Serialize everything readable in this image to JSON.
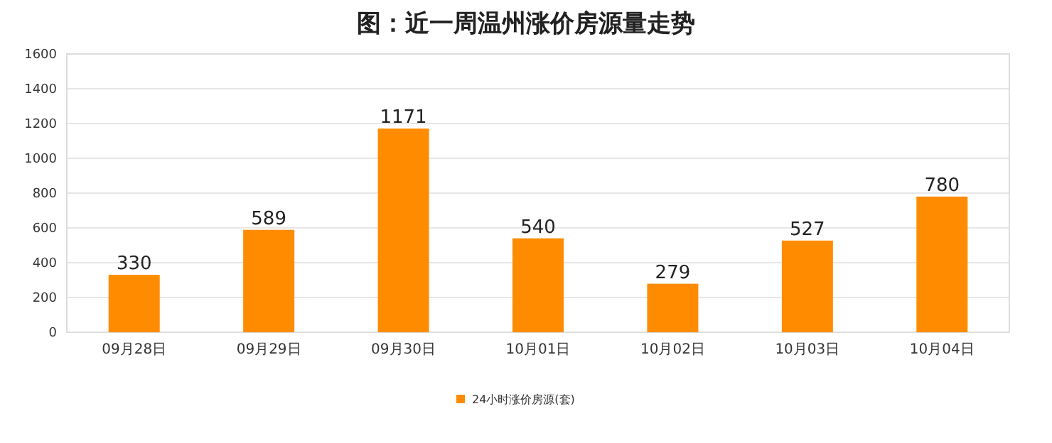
{
  "chart_data": {
    "type": "bar",
    "title": "图：近一周温州涨价房源量走势",
    "categories": [
      "09月28日",
      "09月29日",
      "09月30日",
      "10月01日",
      "10月02日",
      "10月03日",
      "10月04日"
    ],
    "series": [
      {
        "name": "24小时涨价房源(套)",
        "color": "#ff8c00",
        "values": [
          330,
          589,
          1171,
          540,
          279,
          527,
          780
        ]
      }
    ],
    "ylim": [
      0,
      1600
    ],
    "yticks": [
      0,
      200,
      400,
      600,
      800,
      1000,
      1200,
      1400,
      1600
    ],
    "grid": "y",
    "legend": "bottom",
    "data_labels": true
  }
}
